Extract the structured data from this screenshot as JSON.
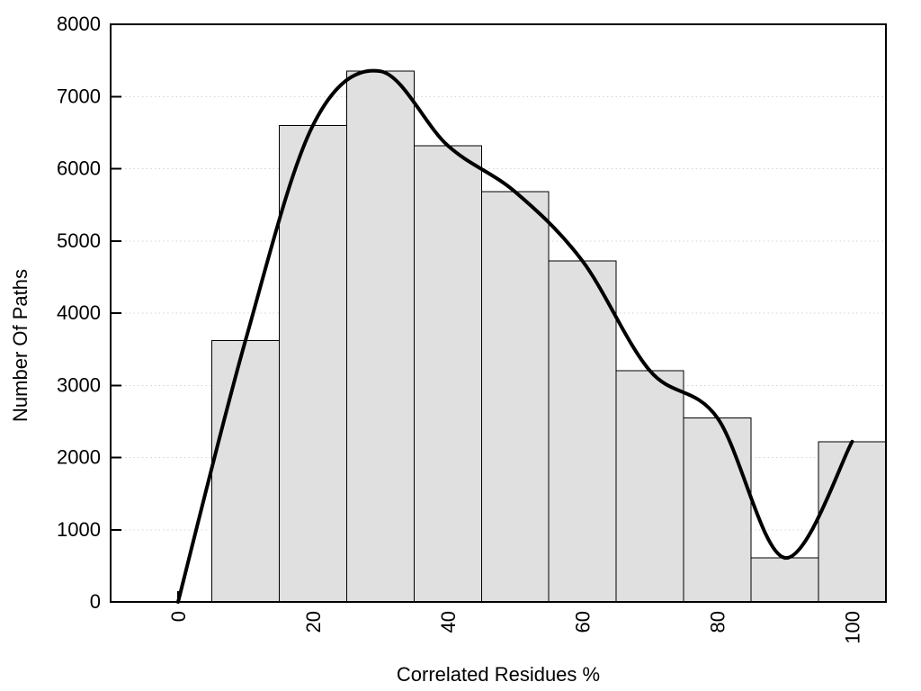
{
  "chart_data": {
    "type": "bar",
    "subtype": "histogram-with-smooth-curve",
    "title": "",
    "xlabel": "Correlated Residues %",
    "ylabel": "Number Of Paths",
    "xlim": [
      -10,
      105
    ],
    "ylim": [
      0,
      8000
    ],
    "x_ticks": [
      0,
      20,
      40,
      60,
      80,
      100
    ],
    "y_ticks": [
      0,
      1000,
      2000,
      3000,
      4000,
      5000,
      6000,
      7000,
      8000
    ],
    "grid": "horizontal dotted lines at each y tick",
    "legend_position": "none",
    "bin_width": 10,
    "bars": [
      {
        "x_start": 5,
        "x_end": 15,
        "value": 3620
      },
      {
        "x_start": 15,
        "x_end": 25,
        "value": 6600
      },
      {
        "x_start": 25,
        "x_end": 35,
        "value": 7350
      },
      {
        "x_start": 35,
        "x_end": 45,
        "value": 6320
      },
      {
        "x_start": 45,
        "x_end": 55,
        "value": 5680
      },
      {
        "x_start": 55,
        "x_end": 65,
        "value": 4720
      },
      {
        "x_start": 65,
        "x_end": 75,
        "value": 3200
      },
      {
        "x_start": 75,
        "x_end": 85,
        "value": 2550
      },
      {
        "x_start": 85,
        "x_end": 95,
        "value": 610
      },
      {
        "x_start": 95,
        "x_end": 105,
        "value": 2220
      }
    ],
    "series": [
      {
        "name": "smoothed frequency curve",
        "type": "line",
        "smooth": true,
        "x": [
          0,
          10,
          20,
          30,
          40,
          50,
          60,
          70,
          80,
          90,
          100
        ],
        "y": [
          0,
          3620,
          6600,
          7350,
          6320,
          5680,
          4720,
          3200,
          2550,
          610,
          2220
        ]
      }
    ],
    "colors": {
      "background": "#ffffff",
      "bar_fill": "#e0e0e0",
      "bar_stroke": "#000000",
      "curve": "#000000",
      "grid": "#d4d4d4",
      "axis": "#000000",
      "text": "#000000"
    }
  }
}
